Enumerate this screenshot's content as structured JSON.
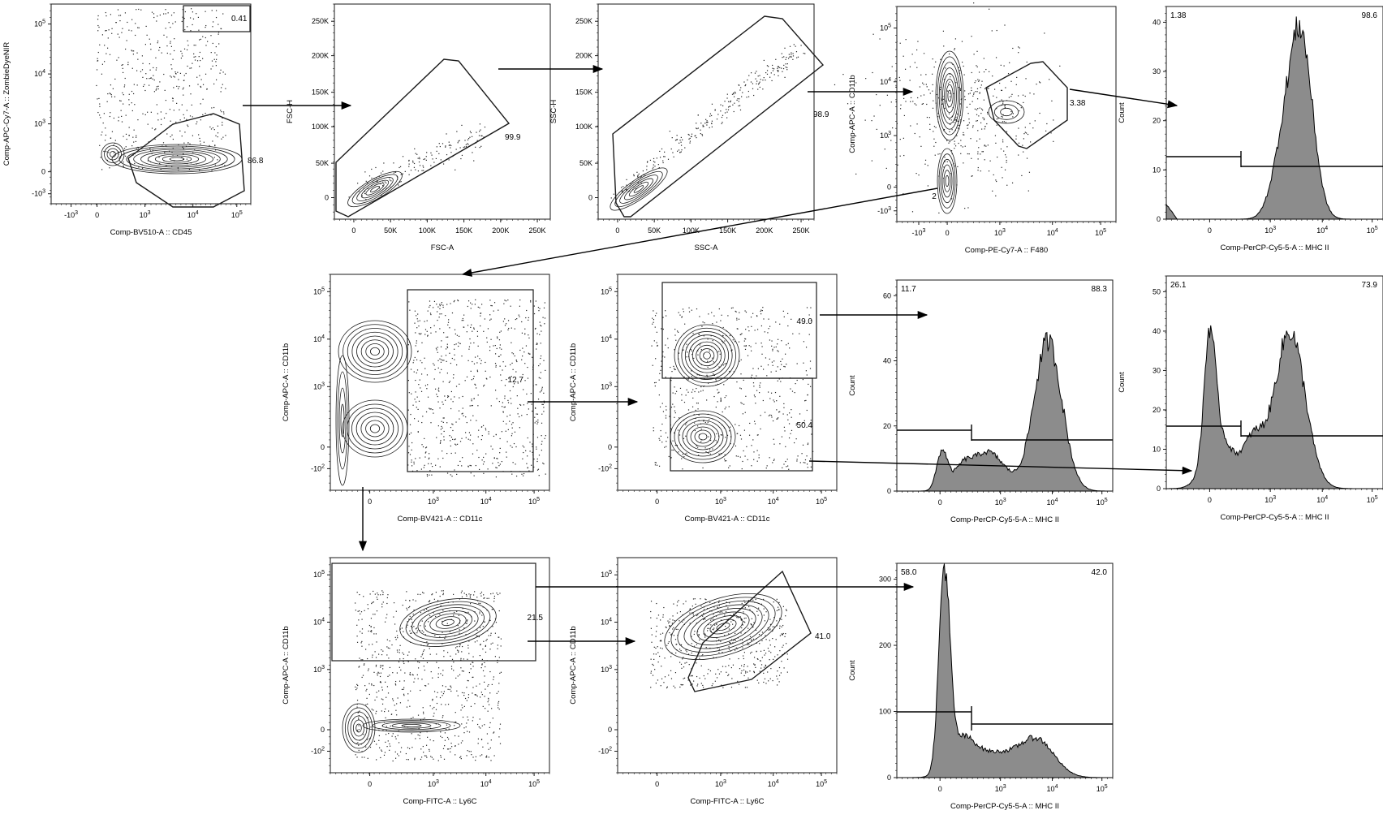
{
  "chart_data": [
    {
      "id": "p1",
      "type": "contour-gate",
      "xlabel": "Comp-BV510-A :: CD45",
      "ylabel": "Comp-APC-Cy7-A :: ZombieDyeNIR",
      "x_axis": "log",
      "y_axis": "log",
      "gates": [
        {
          "label": "0.41",
          "value": 0.41
        },
        {
          "label": "86.8",
          "value": 86.8
        }
      ]
    },
    {
      "id": "p2",
      "type": "contour-gate",
      "xlabel": "FSC-A",
      "ylabel": "FSC-H",
      "x_axis": "linear",
      "y_axis": "linear",
      "xlim": [
        0,
        250000
      ],
      "ylim": [
        0,
        250000
      ],
      "gates": [
        {
          "label": "99.9",
          "value": 99.9
        }
      ]
    },
    {
      "id": "p3",
      "type": "contour-gate",
      "xlabel": "SSC-A",
      "ylabel": "SSC-H",
      "x_axis": "linear",
      "y_axis": "linear",
      "xlim": [
        0,
        250000
      ],
      "ylim": [
        0,
        250000
      ],
      "gates": [
        {
          "label": "98.9",
          "value": 98.9
        }
      ]
    },
    {
      "id": "p4",
      "type": "contour-gate",
      "xlabel": "Comp-PE-Cy7-A :: F480",
      "ylabel": "Comp-APC-A :: CD11b",
      "x_axis": "log",
      "y_axis": "log",
      "gates": [
        {
          "label": "3.38",
          "value": 3.38
        }
      ]
    },
    {
      "id": "p5",
      "type": "histogram",
      "xlabel": "Comp-PerCP-Cy5-5-A :: MHC II",
      "ylabel": "Count",
      "ylim": [
        0,
        40
      ],
      "gates": [
        {
          "label": "1.38",
          "value": 1.38
        },
        {
          "label": "98.6",
          "value": 98.6
        }
      ]
    },
    {
      "id": "p6",
      "type": "contour-gate",
      "xlabel": "Comp-BV421-A :: CD11c",
      "ylabel": "Comp-APC-A :: CD11b",
      "x_axis": "log",
      "y_axis": "log",
      "gates": [
        {
          "label": "12.7",
          "value": 12.7
        }
      ]
    },
    {
      "id": "p7",
      "type": "contour-gate",
      "xlabel": "Comp-BV421-A :: CD11c",
      "ylabel": "Comp-APC-A :: CD11b",
      "x_axis": "log",
      "y_axis": "log",
      "gates": [
        {
          "label": "49.0",
          "value": 49.0
        },
        {
          "label": "50.4",
          "value": 50.4
        }
      ]
    },
    {
      "id": "p8",
      "type": "histogram",
      "xlabel": "Comp-PerCP-Cy5-5-A :: MHC II",
      "ylabel": "Count",
      "ylim": [
        0,
        60
      ],
      "gates": [
        {
          "label": "11.7",
          "value": 11.7
        },
        {
          "label": "88.3",
          "value": 88.3
        }
      ]
    },
    {
      "id": "p9",
      "type": "histogram",
      "xlabel": "Comp-PerCP-Cy5-5-A :: MHC II",
      "ylabel": "Count",
      "ylim": [
        0,
        50
      ],
      "gates": [
        {
          "label": "26.1",
          "value": 26.1
        },
        {
          "label": "73.9",
          "value": 73.9
        }
      ]
    },
    {
      "id": "p10",
      "type": "contour-gate",
      "xlabel": "Comp-FITC-A :: Ly6C",
      "ylabel": "Comp-APC-A :: CD11b",
      "x_axis": "log",
      "y_axis": "log",
      "gates": [
        {
          "label": "21.5",
          "value": 21.5
        }
      ]
    },
    {
      "id": "p11",
      "type": "contour-gate",
      "xlabel": "Comp-FITC-A :: Ly6C",
      "ylabel": "Comp-APC-A :: CD11b",
      "x_axis": "log",
      "y_axis": "log",
      "gates": [
        {
          "label": "41.0",
          "value": 41.0
        }
      ]
    },
    {
      "id": "p12",
      "type": "histogram",
      "xlabel": "Comp-PerCP-Cy5-5-A :: MHC II",
      "ylabel": "Count",
      "ylim": [
        0,
        300
      ],
      "gates": [
        {
          "label": "58.0",
          "value": 58.0
        },
        {
          "label": "42.0",
          "value": 42.0
        }
      ]
    }
  ],
  "ticks": {
    "log_x": [
      "-10",
      "0",
      "10",
      "10",
      "10"
    ],
    "log_x_exp": [
      "3",
      "",
      "3",
      "4",
      "5"
    ],
    "log_x_small": [
      "0",
      "10",
      "10",
      "10"
    ],
    "log_x_small_exp": [
      "",
      "3",
      "4",
      "5"
    ],
    "log_y": [
      "10",
      "10",
      "10",
      "0",
      "-10"
    ],
    "log_y_exp": [
      "5",
      "4",
      "3",
      "",
      "3"
    ],
    "log_y_small": [
      "10",
      "10",
      "10",
      "0",
      "-10"
    ],
    "log_y_small_exp": [
      "5",
      "4",
      "3",
      "",
      "2"
    ],
    "lin": [
      "0",
      "50K",
      "100K",
      "150K",
      "200K",
      "250K"
    ],
    "p4_extra": "2"
  },
  "colors": {
    "line": "#1a1a1a",
    "fill": "#8c8c8c",
    "dot": "#222222"
  }
}
